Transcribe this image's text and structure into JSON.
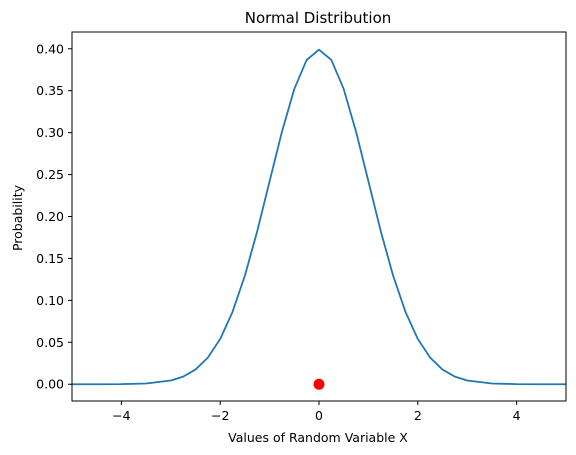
{
  "chart_data": {
    "type": "line",
    "title": "Normal Distribution",
    "xlabel": "Values of Random Variable X",
    "ylabel": "Probability",
    "xlim": [
      -5,
      5
    ],
    "ylim": [
      -0.02,
      0.42
    ],
    "x_ticks": [
      -4,
      -2,
      0,
      2,
      4
    ],
    "x_tick_labels": [
      "−4",
      "−2",
      "0",
      "2",
      "4"
    ],
    "y_ticks": [
      0.0,
      0.05,
      0.1,
      0.15,
      0.2,
      0.25,
      0.3,
      0.35,
      0.4
    ],
    "y_tick_labels": [
      "0.00",
      "0.05",
      "0.10",
      "0.15",
      "0.20",
      "0.25",
      "0.30",
      "0.35",
      "0.40"
    ],
    "grid": false,
    "legend": "none",
    "series": [
      {
        "type": "line",
        "color": "#1f77b4",
        "x": [
          -5.0,
          -4.5,
          -4.0,
          -3.5,
          -3.0,
          -2.75,
          -2.5,
          -2.25,
          -2.0,
          -1.75,
          -1.5,
          -1.25,
          -1.0,
          -0.75,
          -0.5,
          -0.25,
          0.0,
          0.25,
          0.5,
          0.75,
          1.0,
          1.25,
          1.5,
          1.75,
          2.0,
          2.25,
          2.5,
          2.75,
          3.0,
          3.5,
          4.0,
          4.5,
          5.0
        ],
        "y": [
          0.0,
          0.0,
          0.0001,
          0.0009,
          0.0044,
          0.0091,
          0.0175,
          0.0317,
          0.054,
          0.0863,
          0.1295,
          0.1826,
          0.242,
          0.3011,
          0.3521,
          0.3867,
          0.3989,
          0.3867,
          0.3521,
          0.3011,
          0.242,
          0.1826,
          0.1295,
          0.0863,
          0.054,
          0.0317,
          0.0175,
          0.0091,
          0.0044,
          0.0009,
          0.0001,
          0.0,
          0.0
        ]
      },
      {
        "type": "scatter",
        "color": "#ff0000",
        "x": [
          0
        ],
        "y": [
          0
        ]
      }
    ]
  }
}
